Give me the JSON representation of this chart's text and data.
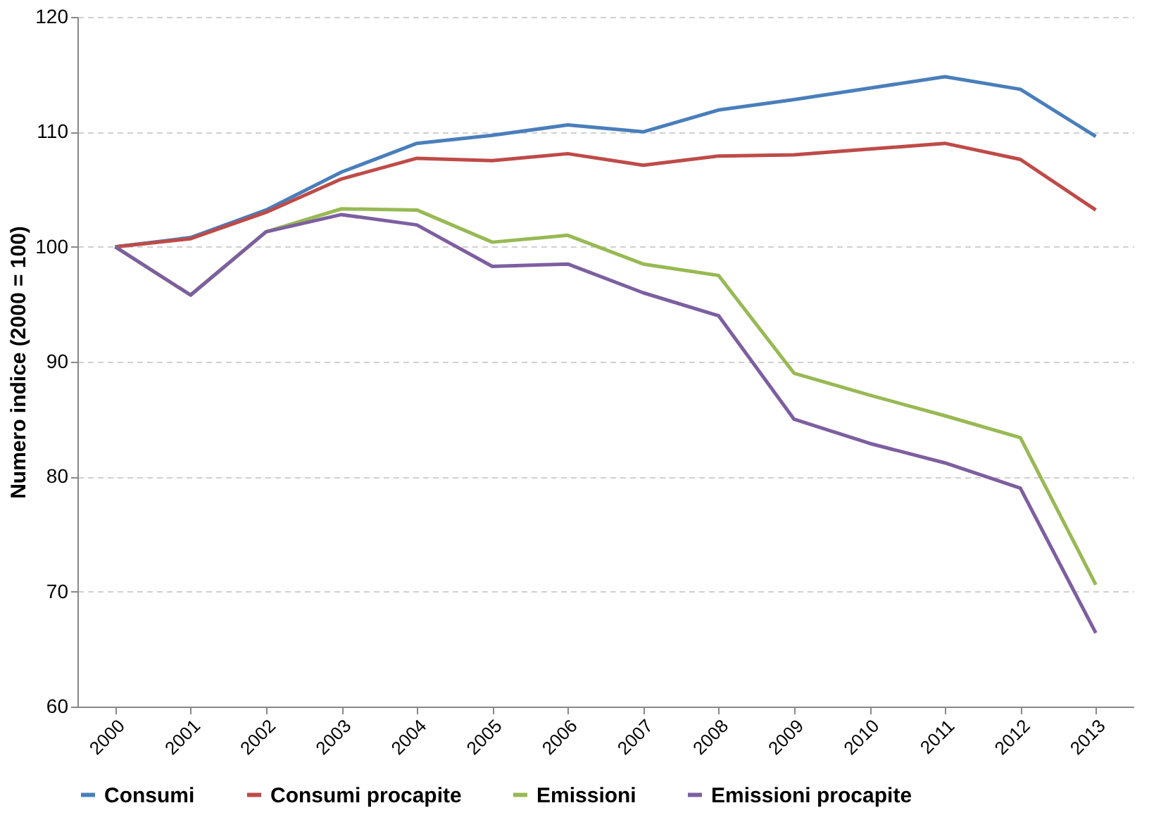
{
  "chart_data": {
    "type": "line",
    "ylabel": "Numero indice (2000 = 100)",
    "categories": [
      "2000",
      "2001",
      "2002",
      "2003",
      "2004",
      "2005",
      "2006",
      "2007",
      "2008",
      "2009",
      "2010",
      "2011",
      "2012",
      "2013"
    ],
    "series": [
      {
        "name": "Consumi",
        "color": "#4a7ebb",
        "values": [
          100,
          100.8,
          103.2,
          106.5,
          109,
          109.7,
          110.6,
          110,
          111.9,
          112.8,
          113.8,
          114.8,
          113.7,
          109.6
        ]
      },
      {
        "name": "Consumi procapite",
        "color": "#be4b48",
        "values": [
          100,
          100.7,
          103,
          105.9,
          107.7,
          107.5,
          108.1,
          107.1,
          107.9,
          108,
          108.5,
          109,
          107.6,
          103.2
        ]
      },
      {
        "name": "Emissioni",
        "color": "#98b954",
        "values": [
          100,
          95.8,
          101.3,
          103.3,
          103.2,
          100.4,
          101,
          98.5,
          97.5,
          89,
          87.1,
          85.3,
          83.4,
          70.6
        ]
      },
      {
        "name": "Emissioni procapite",
        "color": "#7d5fa0",
        "values": [
          100,
          95.8,
          101.3,
          102.8,
          101.9,
          98.3,
          98.5,
          96,
          94,
          85,
          82.9,
          81.2,
          79,
          66.4
        ]
      }
    ],
    "ylim": [
      60,
      120
    ],
    "yticks": [
      60,
      70,
      80,
      90,
      100,
      110,
      120
    ],
    "grid": "y",
    "legend": "bottom",
    "marker": "none",
    "line_style": "solid"
  }
}
